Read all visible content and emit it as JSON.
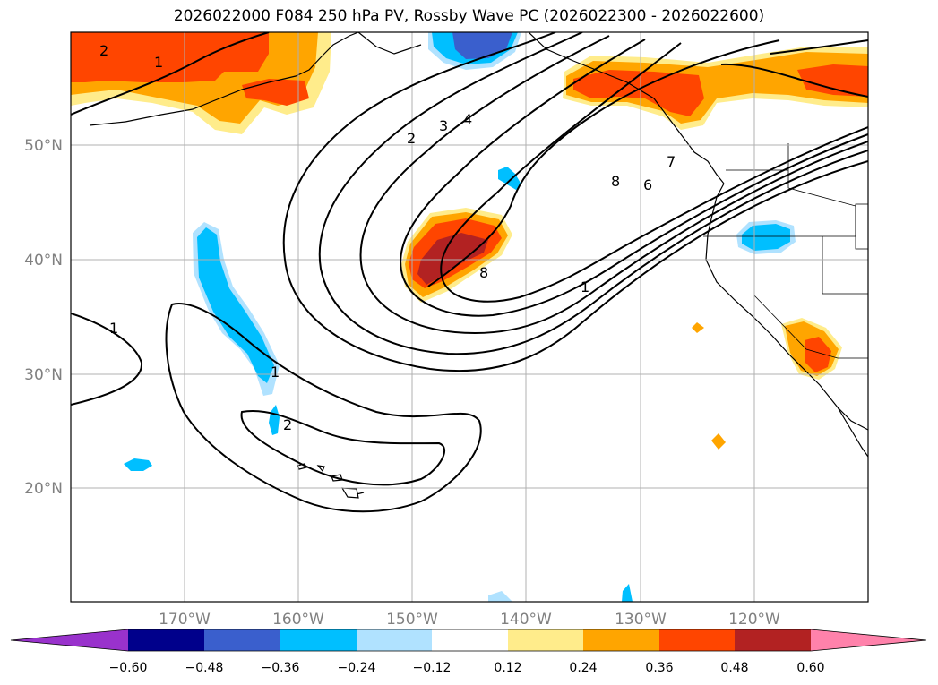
{
  "title": "2026022000 F084 250 hPa PV, Rossby Wave PC (2026022300 - 2026022600)",
  "map": {
    "lat_labels": [
      "50°N",
      "40°N",
      "30°N",
      "20°N"
    ],
    "lon_labels": [
      "170°W",
      "160°W",
      "150°W",
      "140°W",
      "130°W",
      "120°W"
    ],
    "contour_labels": [
      "2",
      "1",
      "2",
      "3",
      "4",
      "8",
      "7",
      "6",
      "8",
      "1",
      "1",
      "1",
      "2"
    ]
  },
  "colorbar": {
    "tick_labels": [
      "−0.60",
      "−0.48",
      "−0.36",
      "−0.24",
      "−0.12",
      "0.12",
      "0.24",
      "0.36",
      "0.48",
      "0.60"
    ],
    "colors": [
      "#9932cc",
      "#00008b",
      "#3a5fcd",
      "#00bfff",
      "#b0e2ff",
      "#ffffff",
      "#ffec8b",
      "#ffa500",
      "#ff4500",
      "#b22222",
      "#ff82ab"
    ]
  }
}
